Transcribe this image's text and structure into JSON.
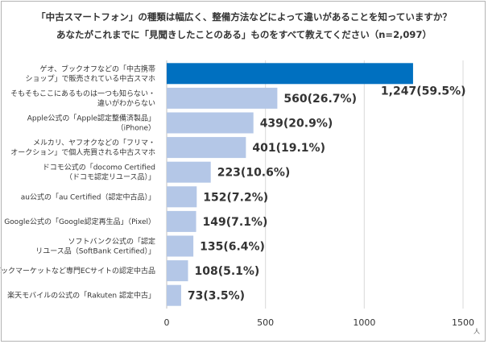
{
  "chart_data": {
    "type": "bar",
    "orientation": "horizontal",
    "title": "「中古スマートフォン」の種類は幅広く、整備方法などによって違いがあることを知っていますか？",
    "subtitle": "あなたがこれまでに「見聞きしたことのある」ものをすべて教えてください（n=2,097）",
    "categories": [
      [
        "ゲオ、ブックオフなどの「中古携帯",
        "ショップ」で販売されている中古スマホ"
      ],
      [
        "そもそもここにあるものは一つも知らない・",
        "違いがわからない"
      ],
      [
        "Apple公式の「Apple認定整備済製品」",
        "（iPhone）"
      ],
      [
        "メルカリ、ヤフオクなどの「フリマ・",
        "オークション」で個人売買される中古スマホ"
      ],
      [
        "ドコモ公式の「docomo Certified",
        "（ドコモ認定リユース品）」"
      ],
      [
        "au公式の「au Certified（認定中古品）」"
      ],
      [
        "Google公式の「Google認定再生品」（Pixel）"
      ],
      [
        "ソフトバンク公式の「認定",
        "リユース品（SoftBank Certified）」"
      ],
      [
        "バックマーケットなど専門ECサイトの認定中古品"
      ],
      [
        "楽天モバイルの公式の「Rakuten 認定中古」"
      ]
    ],
    "values": [
      1247,
      560,
      439,
      401,
      223,
      152,
      149,
      135,
      108,
      73
    ],
    "value_labels": [
      "1,247(59.5%)",
      "560(26.7%)",
      "439(20.9%)",
      "401(19.1%)",
      "223(10.6%)",
      "152(7.2%)",
      "149(7.1%)",
      "135(6.4%)",
      "108(5.1%)",
      "73(3.5%)"
    ],
    "xlim": [
      0,
      1500
    ],
    "xticks": [
      0,
      500,
      1000,
      1500
    ],
    "x_unit": "人",
    "grid": true,
    "colors": {
      "highlight": "#0070c0",
      "bar": "#b4c7e7",
      "grid": "#d9d9d9"
    }
  }
}
